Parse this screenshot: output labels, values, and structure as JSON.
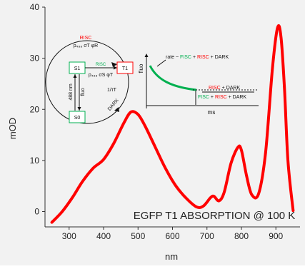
{
  "chart_data": {
    "type": "line",
    "xlabel": "nm",
    "ylabel": "mOD",
    "xlim": [
      230,
      970
    ],
    "ylim": [
      -3,
      40
    ],
    "x_ticks": [
      300,
      400,
      500,
      600,
      700,
      800,
      900
    ],
    "y_ticks": [
      0,
      10,
      20,
      30,
      40
    ],
    "grid": false,
    "series": [
      {
        "color": "#ff0000",
        "x": [
          250,
          280,
          310,
          340,
          370,
          400,
          430,
          460,
          480,
          500,
          520,
          550,
          580,
          610,
          640,
          670,
          690,
          710,
          720,
          735,
          750,
          770,
          790,
          800,
          815,
          830,
          850,
          870,
          890,
          905,
          915,
          925,
          935,
          950
        ],
        "y": [
          -2.1,
          0,
          2.8,
          6,
          8.5,
          10.2,
          13.4,
          17.5,
          19.5,
          19,
          16.8,
          12.6,
          8.4,
          5,
          2.6,
          0.9,
          1.1,
          2.7,
          3,
          2.1,
          3.8,
          9.5,
          12.6,
          12,
          7,
          3.3,
          3.5,
          11.5,
          28,
          36,
          34,
          24,
          10,
          0.2
        ]
      }
    ],
    "annotation": "EGFP T1 ABSORPTION @ 100 K"
  },
  "inset_left": {
    "risc_top": "RISC",
    "rate_top": "p₄₈₈ σT φR",
    "s1": "S1",
    "t1": "T1",
    "risc_mid": "RISC",
    "rate_mid": "p₄₈₈ σS φT",
    "label_488": "488 nm",
    "label_fluo": "fluo",
    "s0": "S0",
    "label_tau": "1/τT",
    "label_dark": "DARK"
  },
  "inset_right": {
    "rate_prefix": "rate ~ ",
    "fisc": "FISC",
    "plus1": " + ",
    "risc": "RISC",
    "plus2": " + ",
    "dark": "DARK",
    "ylabel": "fluo",
    "xlabel": "ms",
    "num_risc": "RISC",
    "num_rest": " + DARK",
    "den_fisc": "FISC",
    "den_plus1": " + ",
    "den_risc": "RISC",
    "den_rest": " + DARK"
  },
  "colors": {
    "curve": "#ff0000",
    "fisc": "#00b050",
    "risc": "#ff0000",
    "decay": "#00b050",
    "dark_text": "#000000"
  }
}
